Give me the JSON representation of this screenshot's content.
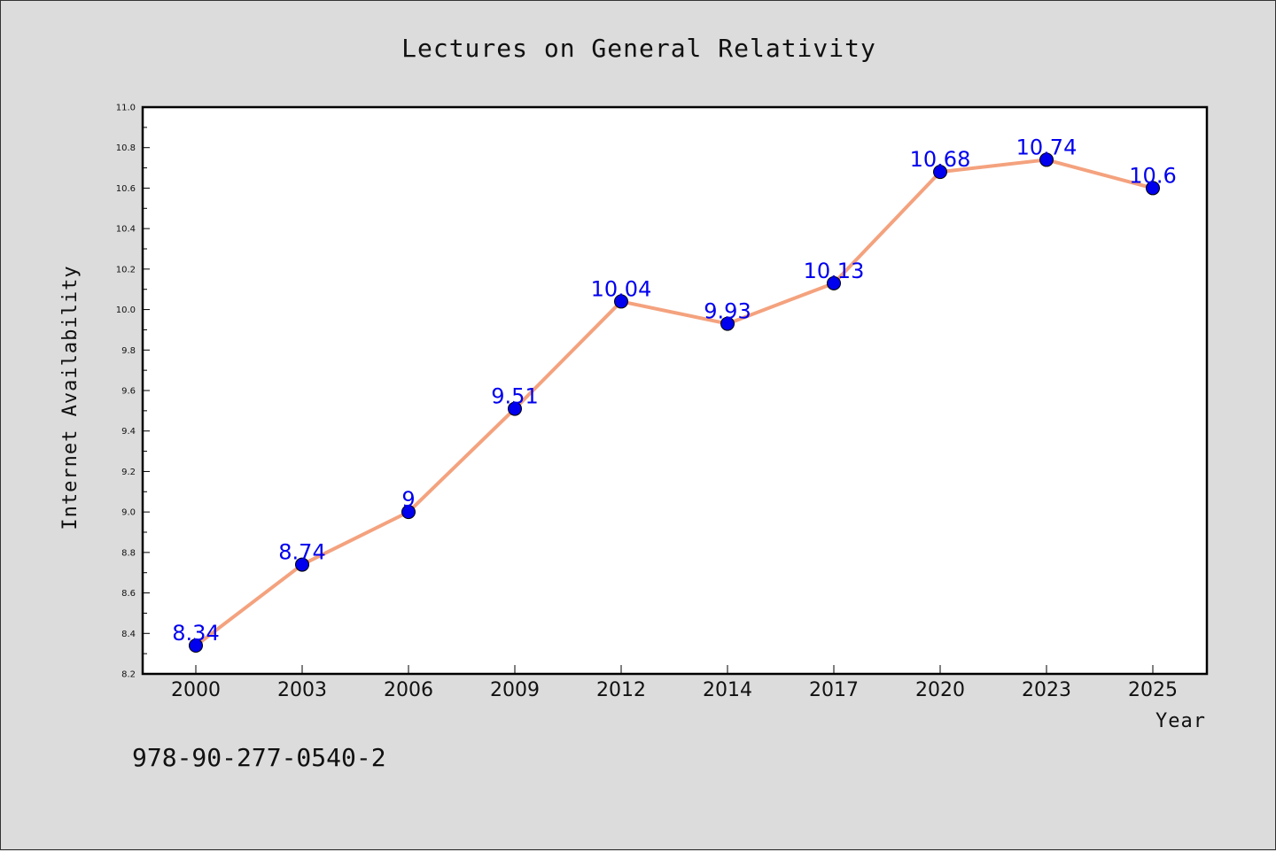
{
  "chart_data": {
    "type": "line",
    "title": "Lectures on General Relativity",
    "xlabel": "Year",
    "ylabel": "Internet Availability",
    "categories": [
      "2000",
      "2003",
      "2006",
      "2009",
      "2012",
      "2014",
      "2017",
      "2020",
      "2023",
      "2025"
    ],
    "values": [
      8.34,
      8.74,
      9,
      9.51,
      10.04,
      9.93,
      10.13,
      10.68,
      10.74,
      10.6
    ],
    "data_labels": [
      "8.34",
      "8.74",
      "9",
      "9.51",
      "10.04",
      "9.93",
      "10.13",
      "10.68",
      "10.74",
      "10.6"
    ],
    "ylim": [
      8.2,
      11.0
    ],
    "yticks": [
      "8.2",
      "8.4",
      "8.6",
      "8.8",
      "9.0",
      "9.2",
      "9.4",
      "9.6",
      "9.8",
      "10.0",
      "10.2",
      "10.4",
      "10.6",
      "10.8",
      "11.0"
    ],
    "grid": false,
    "legend": "none",
    "colors": {
      "line": "#f4a27e",
      "marker": "#0000ee",
      "label": "#0000ee",
      "plot_bg": "#ffffff",
      "page_bg": "#dcdcdc"
    }
  },
  "footer_text": "978-90-277-0540-2"
}
